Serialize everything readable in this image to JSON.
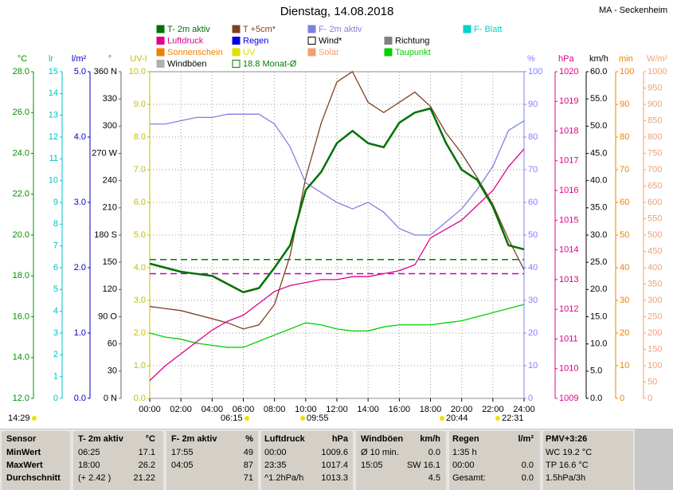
{
  "chart_data": {
    "type": "line",
    "title": "Dienstag, 14.08.2018",
    "station": "MA - Seckenheim",
    "legend": [
      {
        "name": "T- 2m aktiv",
        "color": "#007000"
      },
      {
        "name": "T +5cm*",
        "color": "#804020"
      },
      {
        "name": "F- 2m aktiv",
        "color": "#8080e0"
      },
      {
        "name": "F- Blatt",
        "color": "#00d0d0"
      },
      {
        "name": "Luftdruck",
        "color": "#e0008a"
      },
      {
        "name": "Regen",
        "color": "#0000e0"
      },
      {
        "name": "Wind*",
        "color": "#000000"
      },
      {
        "name": "Richtung",
        "color": "#808080"
      },
      {
        "name": "Sonnenschein",
        "color": "#f08000"
      },
      {
        "name": "UV",
        "color": "#e0e000"
      },
      {
        "name": "Solar",
        "color": "#f0a070"
      },
      {
        "name": "Taupunkt",
        "color": "#00d000"
      },
      {
        "name": "Windböen",
        "color": "#b0b0b0"
      },
      {
        "name": "18.8 Monat-Ø",
        "color": "#008000"
      }
    ],
    "axes": [
      {
        "unit": "°C",
        "color": "#009000",
        "lim": [
          12,
          28
        ],
        "ticks": [
          {
            "value": 12,
            "label": "12.0"
          },
          {
            "value": 14,
            "label": "14.0"
          },
          {
            "value": 16,
            "label": "16.0"
          },
          {
            "value": 18,
            "label": "18.0"
          },
          {
            "value": 20,
            "label": "20.0"
          },
          {
            "value": 22,
            "label": "22.0"
          },
          {
            "value": 24,
            "label": "24.0"
          },
          {
            "value": 26,
            "label": "26.0"
          },
          {
            "value": 28,
            "label": "28.0"
          }
        ]
      },
      {
        "unit": "lr",
        "color": "#00c0c0",
        "lim": [
          0,
          15
        ],
        "ticks": [
          0,
          1,
          2,
          3,
          4,
          5,
          6,
          7,
          8,
          9,
          10,
          11,
          12,
          13,
          14,
          15
        ]
      },
      {
        "unit": "l/m²",
        "color": "#0000c0",
        "lim": [
          0,
          5
        ],
        "ticks": [
          {
            "value": 0,
            "label": "0.0"
          },
          {
            "value": 1,
            "label": "1.0"
          },
          {
            "value": 2,
            "label": "2.0"
          },
          {
            "value": 3,
            "label": "3.0"
          },
          {
            "value": 4,
            "label": "4.0"
          },
          {
            "value": 5,
            "label": "5.0"
          }
        ]
      },
      {
        "unit": "°",
        "color": "#606060",
        "lim": [
          0,
          360
        ],
        "ticks": [
          {
            "value": 0,
            "label": "0 N"
          },
          30,
          60,
          {
            "value": 90,
            "label": "90 O"
          },
          120,
          150,
          {
            "value": 180,
            "label": "180 S"
          },
          210,
          240,
          {
            "value": 270,
            "label": "270 W"
          },
          300,
          330,
          {
            "value": 360,
            "label": "360 N"
          }
        ]
      },
      {
        "unit": "UV-I",
        "color": "#c0c000",
        "lim": [
          0,
          10
        ],
        "ticks": [
          {
            "value": 0,
            "label": "0.0"
          },
          {
            "value": 1,
            "label": "1.0"
          },
          {
            "value": 2,
            "label": "2.0"
          },
          {
            "value": 3,
            "label": "3.0"
          },
          {
            "value": 4,
            "label": "4.0"
          },
          {
            "value": 5,
            "label": "5.0"
          },
          {
            "value": 6,
            "label": "6.0"
          },
          {
            "value": 7,
            "label": "7.0"
          },
          {
            "value": 8,
            "label": "8.0"
          },
          {
            "value": 9,
            "label": "9.0"
          },
          {
            "value": 10,
            "label": "10.0"
          }
        ]
      },
      {
        "unit": "%",
        "color": "#8080ff",
        "lim": [
          0,
          100
        ],
        "ticks": [
          0,
          10,
          20,
          30,
          40,
          50,
          60,
          70,
          80,
          90,
          100
        ]
      },
      {
        "unit": "hPa",
        "color": "#e0008a",
        "lim": [
          1009,
          1020
        ],
        "ticks": [
          1009,
          1010,
          1011,
          1012,
          1013,
          1014,
          1015,
          1016,
          1017,
          1018,
          1019,
          1020
        ]
      },
      {
        "unit": "km/h",
        "color": "#000000",
        "lim": [
          0,
          60
        ],
        "ticks": [
          {
            "value": 0,
            "label": "0.0"
          },
          {
            "value": 5,
            "label": "5.0"
          },
          {
            "value": 10,
            "label": "10.0"
          },
          {
            "value": 15,
            "label": "15.0"
          },
          {
            "value": 20,
            "label": "20.0"
          },
          {
            "value": 25,
            "label": "25.0"
          },
          {
            "value": 30,
            "label": "30.0"
          },
          {
            "value": 35,
            "label": "35.0"
          },
          {
            "value": 40,
            "label": "40.0"
          },
          {
            "value": 45,
            "label": "45.0"
          },
          {
            "value": 50,
            "label": "50.0"
          },
          {
            "value": 55,
            "label": "55.0"
          },
          {
            "value": 60,
            "label": "60.0"
          }
        ]
      },
      {
        "unit": "min",
        "color": "#f08000",
        "lim": [
          0,
          100
        ],
        "ticks": [
          0,
          10,
          20,
          30,
          40,
          50,
          60,
          70,
          80,
          90,
          100
        ]
      },
      {
        "unit": "W/m²",
        "color": "#f0a070",
        "lim": [
          0,
          1000
        ],
        "ticks": [
          0,
          50,
          100,
          150,
          200,
          250,
          300,
          350,
          400,
          450,
          500,
          550,
          600,
          650,
          700,
          750,
          800,
          850,
          900,
          950,
          1000
        ]
      }
    ],
    "xlim": [
      0,
      24
    ],
    "xticks": [
      {
        "value": 0,
        "label": "00:00"
      },
      {
        "value": 2,
        "label": "02:00"
      },
      {
        "value": 4,
        "label": "04:00"
      },
      {
        "value": 6,
        "label": "06:00"
      },
      {
        "value": 8,
        "label": "08:00"
      },
      {
        "value": 10,
        "label": "10:00"
      },
      {
        "value": 12,
        "label": "12:00"
      },
      {
        "value": 14,
        "label": "14:00"
      },
      {
        "value": 16,
        "label": "16:00"
      },
      {
        "value": 18,
        "label": "18:00"
      },
      {
        "value": 20,
        "label": "20:00"
      },
      {
        "value": 22,
        "label": "22:00"
      },
      {
        "value": 24,
        "label": "24:00"
      }
    ],
    "x": [
      0,
      1,
      2,
      3,
      4,
      5,
      6,
      7,
      8,
      9,
      10,
      11,
      12,
      13,
      14,
      15,
      16,
      17,
      18,
      19,
      20,
      21,
      22,
      23,
      24
    ],
    "series": [
      {
        "legend": 1,
        "axis": 0,
        "values": [
          16.5,
          16.4,
          16.3,
          16.1,
          15.9,
          15.7,
          15.4,
          15.6,
          16.6,
          19.0,
          22.8,
          25.5,
          27.5,
          28.0,
          26.5,
          26.0,
          26.5,
          27.0,
          26.3,
          25.0,
          24.0,
          22.8,
          21.5,
          19.8,
          18.3
        ]
      },
      {
        "legend": 11,
        "axis": 0,
        "values": [
          15.2,
          15.0,
          14.9,
          14.7,
          14.6,
          14.5,
          14.5,
          14.8,
          15.1,
          15.4,
          15.7,
          15.6,
          15.4,
          15.3,
          15.3,
          15.5,
          15.6,
          15.6,
          15.6,
          15.7,
          15.8,
          16.0,
          16.2,
          16.4,
          16.6
        ]
      },
      {
        "legend": 2,
        "axis": 5,
        "values": [
          84,
          84,
          85,
          86,
          86,
          87,
          87,
          87,
          84,
          77,
          66,
          63,
          60,
          58,
          60,
          57,
          52,
          50,
          50,
          54,
          58,
          64,
          71,
          82,
          85
        ]
      },
      {
        "legend": 4,
        "axis": 6,
        "values": [
          1009.6,
          1010.1,
          1010.5,
          1010.9,
          1011.3,
          1011.6,
          1011.8,
          1012.2,
          1012.6,
          1012.8,
          1012.9,
          1013.0,
          1013.0,
          1013.1,
          1013.1,
          1013.2,
          1013.3,
          1013.5,
          1014.4,
          1014.7,
          1015.0,
          1015.5,
          1016.0,
          1016.8,
          1017.4
        ]
      },
      {
        "legend": 0,
        "axis": 0,
        "values": [
          18.6,
          18.4,
          18.2,
          18.1,
          18.0,
          17.6,
          17.2,
          17.4,
          18.4,
          19.5,
          22.2,
          23.1,
          24.5,
          25.1,
          24.5,
          24.3,
          25.5,
          26.0,
          26.2,
          24.5,
          23.2,
          22.7,
          21.4,
          19.5,
          19.3
        ]
      }
    ],
    "reference_lines": [
      {
        "axis": 0,
        "value": 18.8,
        "color": "#008000"
      },
      {
        "axis": 6,
        "value": 1013.2,
        "color": "#c000c0"
      }
    ],
    "markers": [
      "14:29",
      "06:15",
      "09:55",
      "20:44",
      "22:31"
    ]
  },
  "table": {
    "headers": [
      "Sensor",
      "T- 2m aktiv",
      "°C",
      "F- 2m aktiv",
      "%",
      "Luftdruck",
      "hPa",
      "Windböen",
      "km/h",
      "Regen",
      "l/m²",
      "PMV+3:26"
    ],
    "rows": [
      [
        "MinWert",
        "06:25",
        "17.1",
        "17:55",
        "49",
        "00:00",
        "1009.6",
        "Ø 10 min.",
        "0.0",
        "1:35 h",
        null,
        "WC 19.2 °C"
      ],
      [
        "MaxWert",
        "18:00",
        "26.2",
        "04:05",
        "87",
        "23:35",
        "1017.4",
        "15:05",
        "SW 16.1",
        "00:00",
        "0.0",
        "TP 16.6 °C"
      ],
      [
        "Durchschnitt",
        "(+ 2.42 )",
        "21.22",
        null,
        "71",
        "^1.2hPa/h",
        "1013.3",
        null,
        "4.5",
        "Gesamt:",
        "0.0",
        "1.5hPa/3h"
      ]
    ]
  }
}
